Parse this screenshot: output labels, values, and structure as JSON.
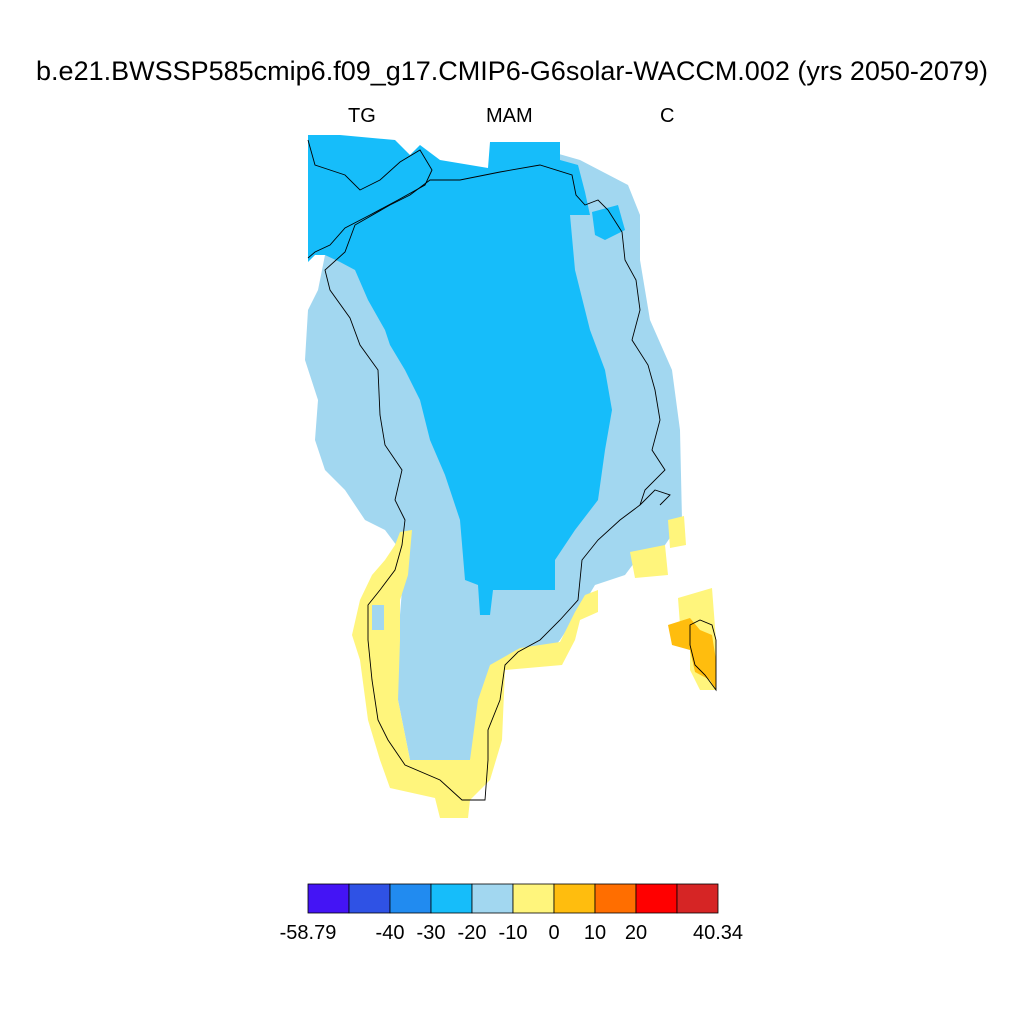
{
  "title": "b.e21.BWSSP585cmip6.f09_g17.CMIP6-G6solar-WACCM.002 (yrs 2050-2079)",
  "subtitle_left": "TG",
  "subtitle_center": "MAM",
  "subtitle_right": "C",
  "colorbar": {
    "colors": [
      "#4414f5",
      "#2f52e5",
      "#218bf0",
      "#16bdfa",
      "#a2d7f0",
      "#fff57c",
      "#ffbd0e",
      "#ff6e00",
      "#ff0000",
      "#d62525"
    ],
    "labels": [
      "-58.79",
      "-40",
      "-30",
      "-20",
      "-10",
      "0",
      "10",
      "20",
      "40.34"
    ]
  },
  "map_colors": {
    "ocean": "#ffffff",
    "coastline": "#000000"
  }
}
